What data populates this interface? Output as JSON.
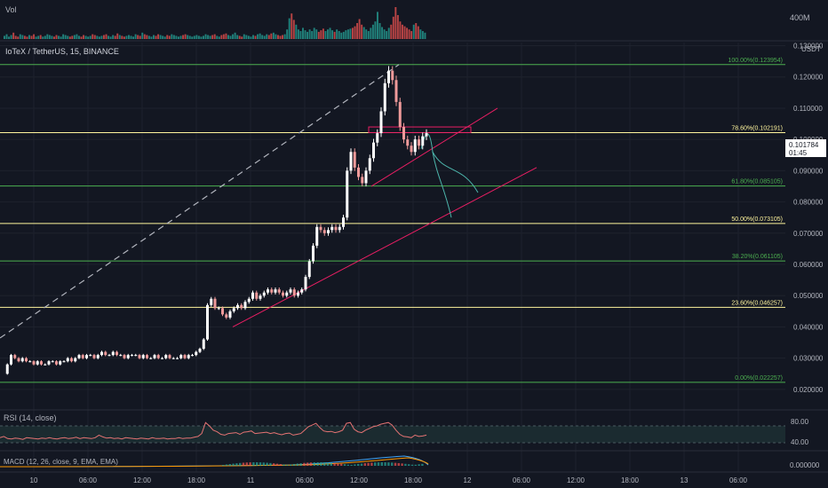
{
  "symbol_label": "IoTeX / TetherUS, 15, BINANCE",
  "currency_label": "USDT",
  "volume": {
    "label": "Vol",
    "axis_label": "400M",
    "bars": [
      4,
      6,
      3,
      5,
      8,
      4,
      3,
      6,
      5,
      4,
      3,
      5,
      4,
      6,
      3,
      4,
      5,
      3,
      4,
      6,
      5,
      4,
      3,
      5,
      4,
      3,
      6,
      5,
      4,
      3,
      4,
      5,
      6,
      4,
      3,
      5,
      4,
      3,
      4,
      6,
      5,
      4,
      3,
      4,
      5,
      6,
      4,
      3,
      5,
      4,
      7,
      5,
      4,
      3,
      4,
      5,
      4,
      3,
      6,
      5,
      4,
      8,
      6,
      5,
      4,
      3,
      5,
      4,
      6,
      5,
      4,
      3,
      5,
      4,
      6,
      5,
      4,
      3,
      4,
      5,
      6,
      5,
      4,
      3,
      4,
      5,
      4,
      3,
      4,
      6,
      5,
      4,
      5,
      6,
      4,
      3,
      5,
      6,
      7,
      5,
      4,
      6,
      8,
      5,
      4,
      3,
      6,
      5,
      4,
      3,
      5,
      4,
      6,
      7,
      5,
      4,
      6,
      5,
      7,
      8,
      6,
      5,
      4,
      5,
      6,
      12,
      26,
      32,
      24,
      18,
      12,
      10,
      14,
      11,
      9,
      12,
      10,
      14,
      12,
      9,
      11,
      13,
      10,
      12,
      14,
      11,
      9,
      12,
      10,
      8,
      9,
      11,
      12,
      13,
      14,
      16,
      20,
      25,
      18,
      15,
      12,
      10,
      14,
      18,
      22,
      34,
      20,
      15,
      12,
      10,
      14,
      18,
      28,
      40,
      30,
      22,
      18,
      16,
      14,
      12,
      10,
      18,
      20,
      16,
      12,
      10,
      8
    ]
  },
  "chart_data": {
    "type": "candlestick",
    "price_axis": {
      "ylim": [
        0.014,
        0.131
      ],
      "ticks": [
        "0.130000",
        "0.120000",
        "0.110000",
        "0.100000",
        "0.090000",
        "0.080000",
        "0.070000",
        "0.060000",
        "0.050000",
        "0.040000",
        "0.030000",
        "0.020000"
      ],
      "current_price": "0.101784",
      "countdown": "01:45"
    },
    "time_axis": {
      "labels": [
        "10",
        "06:00",
        "12:00",
        "18:00",
        "11",
        "06:00",
        "12:00",
        "18:00",
        "12",
        "06:00",
        "12:00",
        "18:00",
        "13",
        "06:00"
      ]
    },
    "price_path": [
      0.025,
      0.028,
      0.031,
      0.03,
      0.029,
      0.03,
      0.029,
      0.029,
      0.028,
      0.029,
      0.028,
      0.028,
      0.029,
      0.029,
      0.028,
      0.029,
      0.029,
      0.03,
      0.029,
      0.03,
      0.031,
      0.03,
      0.031,
      0.031,
      0.03,
      0.031,
      0.032,
      0.031,
      0.031,
      0.032,
      0.031,
      0.031,
      0.03,
      0.031,
      0.031,
      0.031,
      0.03,
      0.031,
      0.03,
      0.03,
      0.031,
      0.03,
      0.03,
      0.031,
      0.03,
      0.03,
      0.03,
      0.031,
      0.03,
      0.031,
      0.031,
      0.032,
      0.033,
      0.036,
      0.047,
      0.049,
      0.046,
      0.046,
      0.044,
      0.043,
      0.045,
      0.046,
      0.047,
      0.046,
      0.048,
      0.049,
      0.051,
      0.049,
      0.05,
      0.051,
      0.052,
      0.051,
      0.052,
      0.051,
      0.05,
      0.051,
      0.052,
      0.05,
      0.051,
      0.052,
      0.056,
      0.061,
      0.066,
      0.072,
      0.071,
      0.07,
      0.071,
      0.072,
      0.071,
      0.072,
      0.075,
      0.09,
      0.096,
      0.091,
      0.088,
      0.086,
      0.09,
      0.094,
      0.099,
      0.102,
      0.109,
      0.118,
      0.122,
      0.119,
      0.112,
      0.104,
      0.1,
      0.098,
      0.096,
      0.1,
      0.098,
      0.101,
      0.102
    ],
    "fibonacci": [
      {
        "label": "100.00%(0.123954)",
        "value": 0.123954,
        "color": "#4caf50"
      },
      {
        "label": "78.60%(0.102191)",
        "value": 0.102191,
        "color": "#fff59d"
      },
      {
        "label": "61.80%(0.085105)",
        "value": 0.085105,
        "color": "#4caf50"
      },
      {
        "label": "50.00%(0.073105)",
        "value": 0.073105,
        "color": "#fff59d"
      },
      {
        "label": "38.20%(0.061105)",
        "value": 0.061105,
        "color": "#4caf50"
      },
      {
        "label": "23.60%(0.046257)",
        "value": 0.046257,
        "color": "#fff59d"
      },
      {
        "label": "0.00%(0.022257)",
        "value": 0.022257,
        "color": "#4caf50"
      }
    ],
    "colors": {
      "up": "#ffffff",
      "down": "#ef9a9a",
      "bull_vol": "#26a69a",
      "bear_vol": "#ef5350",
      "trendline": "#e91e63",
      "projection": "#4db6ac"
    }
  },
  "rsi": {
    "label": "RSI (14, close)",
    "ticks": [
      "80.00",
      "40.00"
    ],
    "values": [
      52,
      55,
      50,
      49,
      51,
      50,
      48,
      52,
      51,
      50,
      49,
      51,
      50,
      52,
      50,
      49,
      51,
      52,
      50,
      51,
      53,
      50,
      52,
      51,
      50,
      52,
      58,
      54,
      51,
      52,
      50,
      51,
      49,
      52,
      51,
      50,
      49,
      51,
      50,
      49,
      52,
      50,
      50,
      51,
      49,
      50,
      50,
      52,
      50,
      51,
      51,
      53,
      55,
      62,
      88,
      80,
      70,
      66,
      60,
      58,
      62,
      63,
      64,
      60,
      65,
      66,
      68,
      62,
      63,
      64,
      65,
      62,
      64,
      61,
      59,
      62,
      63,
      58,
      60,
      62,
      70,
      78,
      82,
      86,
      76,
      68,
      66,
      67,
      64,
      66,
      70,
      86,
      88,
      72,
      66,
      64,
      70,
      74,
      78,
      80,
      84,
      86,
      88,
      82,
      70,
      60,
      55,
      54,
      52,
      58,
      55,
      56,
      58
    ]
  },
  "macd": {
    "label": "MACD (12, 26, close, 9, EMA, EMA)",
    "tick": "0.000000"
  }
}
